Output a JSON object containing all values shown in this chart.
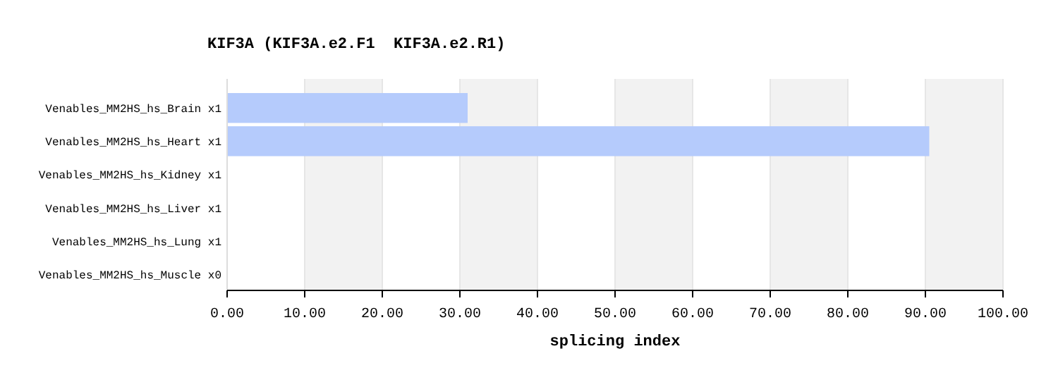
{
  "chart_data": {
    "type": "bar",
    "orientation": "horizontal",
    "title": "KIF3A (KIF3A.e2.F1  KIF3A.e2.R1)",
    "xlabel": "splicing index",
    "categories": [
      "Venables_MM2HS_hs_Brain x1",
      "Venables_MM2HS_hs_Heart x1",
      "Venables_MM2HS_hs_Kidney x1",
      "Venables_MM2HS_hs_Liver x1",
      "Venables_MM2HS_hs_Lung x1",
      "Venables_MM2HS_hs_Muscle x0"
    ],
    "values": [
      31,
      90.5,
      null,
      null,
      null,
      null
    ],
    "color": "#b5cbfc",
    "xlim": [
      0,
      100
    ],
    "xticks": [
      {
        "value": 0,
        "label": "0.00"
      },
      {
        "value": 10,
        "label": "10.00"
      },
      {
        "value": 20,
        "label": "20.00"
      },
      {
        "value": 30,
        "label": "30.00"
      },
      {
        "value": 40,
        "label": "40.00"
      },
      {
        "value": 50,
        "label": "50.00"
      },
      {
        "value": 60,
        "label": "60.00"
      },
      {
        "value": 70,
        "label": "70.00"
      },
      {
        "value": 80,
        "label": "80.00"
      },
      {
        "value": 90,
        "label": "90.00"
      },
      {
        "value": 100,
        "label": "100.00"
      }
    ],
    "grid": "x"
  }
}
